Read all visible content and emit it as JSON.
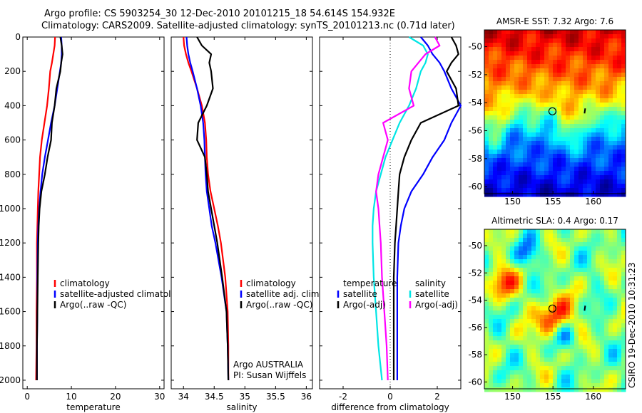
{
  "header": {
    "line1": "Argo profile: CS 5903254_30 12-Dec-2010 20101215_18 54.614S 154.932E",
    "line2": "Climatology: CARS2009. Satellite-adjusted climatology: synTS_20101213.nc (0.71d later)"
  },
  "footer": {
    "stamp": "CSIRO 19-Dec-2010 10:31:23"
  },
  "colors": {
    "climatology": "#ff0000",
    "satellite": "#0000ff",
    "argo": "#000000",
    "sal_satellite": "#00e5e5",
    "sal_argo": "#ff00ff"
  },
  "chart_data": [
    {
      "type": "line",
      "xlabel": "temperature",
      "ylabel": "",
      "xlim": [
        -1,
        31
      ],
      "ylim": [
        2050,
        0
      ],
      "yreverse": true,
      "xticks": [
        0,
        10,
        20,
        30
      ],
      "yticks": [
        0,
        200,
        400,
        600,
        800,
        1000,
        1200,
        1400,
        1600,
        1800,
        2000
      ],
      "legend": {
        "position": "lower-right",
        "entries": [
          "climatology",
          "satellite-adjusted climatology",
          "Argo(..raw -QC)"
        ]
      },
      "series": [
        {
          "name": "climatology",
          "color": "#ff0000",
          "x": [
            6.3,
            6.2,
            5.9,
            5.6,
            5.2,
            4.9,
            4.5,
            3.9,
            3.3,
            2.9,
            2.7,
            2.5,
            2.4,
            2.3,
            2.2,
            2.2,
            2.1,
            2.1,
            2.0
          ],
          "y": [
            0,
            50,
            100,
            150,
            200,
            300,
            400,
            500,
            600,
            700,
            800,
            900,
            1000,
            1100,
            1200,
            1400,
            1600,
            1800,
            2000
          ]
        },
        {
          "name": "satellite-adjusted climatology",
          "color": "#0000ff",
          "x": [
            7.7,
            7.8,
            7.8,
            7.7,
            7.4,
            6.8,
            6.2,
            5.4,
            4.7,
            4.0,
            3.4,
            3.0,
            2.7,
            2.5,
            2.4,
            2.3,
            2.3,
            2.2,
            2.2
          ],
          "y": [
            0,
            50,
            100,
            150,
            200,
            300,
            400,
            500,
            600,
            700,
            800,
            900,
            1000,
            1100,
            1200,
            1400,
            1600,
            1800,
            2000
          ]
        },
        {
          "name": "Argo(..raw -QC)",
          "color": "#000000",
          "x": [
            7.5,
            7.8,
            8.0,
            7.7,
            7.5,
            6.6,
            6.2,
            5.6,
            5.4,
            4.6,
            4.0,
            3.2,
            2.8,
            2.6,
            2.5,
            2.4,
            2.3,
            2.2,
            2.2
          ],
          "y": [
            0,
            50,
            100,
            150,
            200,
            300,
            400,
            500,
            600,
            700,
            800,
            900,
            1000,
            1100,
            1200,
            1400,
            1600,
            1800,
            2000
          ]
        }
      ]
    },
    {
      "type": "line",
      "xlabel": "salinity",
      "ylabel": "",
      "xlim": [
        33.8,
        36.1
      ],
      "ylim": [
        2050,
        0
      ],
      "yreverse": true,
      "xticks": [
        34,
        34.5,
        35,
        35.5,
        36
      ],
      "xticklabels": [
        "34",
        "34.5",
        "35",
        "35.5",
        "36"
      ],
      "legend": {
        "position": "lower-right",
        "entries": [
          "climatology",
          "satellite adj. clim.",
          "Argo(..raw -QC)"
        ]
      },
      "annotation": {
        "line1": "Argo AUSTRALIA",
        "line2": "PI: Susan Wijffels"
      },
      "series": [
        {
          "name": "climatology",
          "color": "#ff0000",
          "x": [
            34.0,
            34.01,
            34.04,
            34.08,
            34.13,
            34.22,
            34.3,
            34.35,
            34.37,
            34.38,
            34.4,
            34.44,
            34.5,
            34.56,
            34.61,
            34.68,
            34.72,
            34.73,
            34.73
          ],
          "y": [
            0,
            50,
            100,
            150,
            200,
            300,
            400,
            500,
            600,
            700,
            800,
            900,
            1000,
            1100,
            1200,
            1400,
            1600,
            1800,
            2000
          ]
        },
        {
          "name": "satellite adj. clim.",
          "color": "#0000ff",
          "x": [
            34.05,
            34.06,
            34.08,
            34.11,
            34.15,
            34.22,
            34.28,
            34.32,
            34.34,
            34.35,
            34.36,
            34.38,
            34.42,
            34.46,
            34.52,
            34.62,
            34.7,
            34.72,
            34.73
          ],
          "y": [
            0,
            50,
            100,
            150,
            200,
            300,
            400,
            500,
            600,
            700,
            800,
            900,
            1000,
            1100,
            1200,
            1400,
            1600,
            1800,
            2000
          ]
        },
        {
          "name": "Argo(..raw -QC)",
          "color": "#000000",
          "x": [
            34.22,
            34.3,
            34.45,
            34.42,
            34.45,
            34.48,
            34.38,
            34.24,
            34.22,
            34.35,
            34.38,
            34.4,
            34.45,
            34.5,
            34.55,
            34.63,
            34.7,
            34.72,
            34.73
          ],
          "y": [
            0,
            50,
            100,
            150,
            200,
            300,
            400,
            500,
            600,
            700,
            800,
            900,
            1000,
            1100,
            1200,
            1400,
            1600,
            1800,
            2000
          ]
        }
      ]
    },
    {
      "type": "line",
      "xlabel": "difference from climatology",
      "ylabel": "",
      "xlim": [
        -3,
        3
      ],
      "ylim": [
        2050,
        0
      ],
      "yreverse": true,
      "xticks": [
        -2,
        0,
        2
      ],
      "zero_line": "dotted",
      "legend": {
        "position": "lower-center",
        "groups": [
          {
            "title": "temperature",
            "entries": [
              "satellite",
              "Argo(-adj)"
            ]
          },
          {
            "title": "salinity",
            "entries": [
              "satellite",
              "Argo(-adj)"
            ]
          }
        ]
      },
      "series": [
        {
          "name": "satellite",
          "group": "temperature",
          "color": "#0000ff",
          "x": [
            1.3,
            1.6,
            1.8,
            2.1,
            2.3,
            2.6,
            3.0,
            2.6,
            2.3,
            1.8,
            1.4,
            0.9,
            0.6,
            0.45,
            0.35,
            0.3,
            0.3,
            0.3,
            0.3
          ],
          "y": [
            0,
            50,
            100,
            150,
            200,
            300,
            400,
            500,
            600,
            700,
            800,
            900,
            1000,
            1100,
            1200,
            1400,
            1600,
            1800,
            2000
          ]
        },
        {
          "name": "Argo(-adj)",
          "group": "temperature",
          "color": "#000000",
          "x": [
            2.6,
            2.8,
            2.9,
            2.6,
            2.4,
            2.8,
            2.9,
            1.3,
            0.9,
            0.6,
            0.4,
            0.35,
            0.3,
            0.25,
            0.2,
            0.15,
            0.15,
            0.15,
            0.15
          ],
          "y": [
            0,
            50,
            100,
            150,
            200,
            300,
            400,
            500,
            600,
            700,
            800,
            900,
            1000,
            1100,
            1200,
            1400,
            1600,
            1800,
            2000
          ]
        },
        {
          "name": "satellite",
          "group": "salinity",
          "color": "#00e5e5",
          "x": [
            0.8,
            1.4,
            1.6,
            1.5,
            1.3,
            1.1,
            0.8,
            0.4,
            0.1,
            -0.2,
            -0.4,
            -0.6,
            -0.7,
            -0.75,
            -0.75,
            -0.7,
            -0.6,
            -0.5,
            -0.35
          ],
          "y": [
            0,
            50,
            100,
            150,
            200,
            300,
            400,
            500,
            600,
            700,
            800,
            900,
            1000,
            1100,
            1200,
            1400,
            1600,
            1800,
            2000
          ]
        },
        {
          "name": "Argo(-adj)",
          "group": "salinity",
          "color": "#ff00ff",
          "x": [
            1.9,
            2.1,
            1.5,
            1.2,
            0.9,
            0.8,
            1.0,
            -0.3,
            -0.1,
            -0.3,
            -0.5,
            -0.6,
            -0.5,
            -0.45,
            -0.4,
            -0.35,
            -0.25,
            -0.15,
            -0.1
          ],
          "y": [
            0,
            50,
            100,
            150,
            200,
            300,
            400,
            500,
            600,
            700,
            800,
            900,
            1000,
            1100,
            1200,
            1400,
            1600,
            1800,
            2000
          ]
        }
      ]
    },
    {
      "type": "heatmap",
      "title": "AMSR-E SST: 7.32  Argo: 7.6",
      "xlim": [
        146.5,
        164
      ],
      "ylim": [
        -60.5,
        -48.8
      ],
      "xticks": [
        150,
        155,
        160
      ],
      "yticks": [
        -50,
        -52,
        -54,
        -56,
        -58,
        -60
      ],
      "colormap": "jet",
      "argo_float": {
        "lon": 154.932,
        "lat": -54.614
      }
    },
    {
      "type": "heatmap",
      "title": "Altimetric SLA: 0.4  Argo: 0.17",
      "xlim": [
        146.5,
        164
      ],
      "ylim": [
        -60.5,
        -48.8
      ],
      "xticks": [
        150,
        155,
        160
      ],
      "yticks": [
        -50,
        -52,
        -54,
        -56,
        -58,
        -60
      ],
      "colormap": "jet",
      "argo_float": {
        "lon": 154.932,
        "lat": -54.614
      }
    }
  ]
}
